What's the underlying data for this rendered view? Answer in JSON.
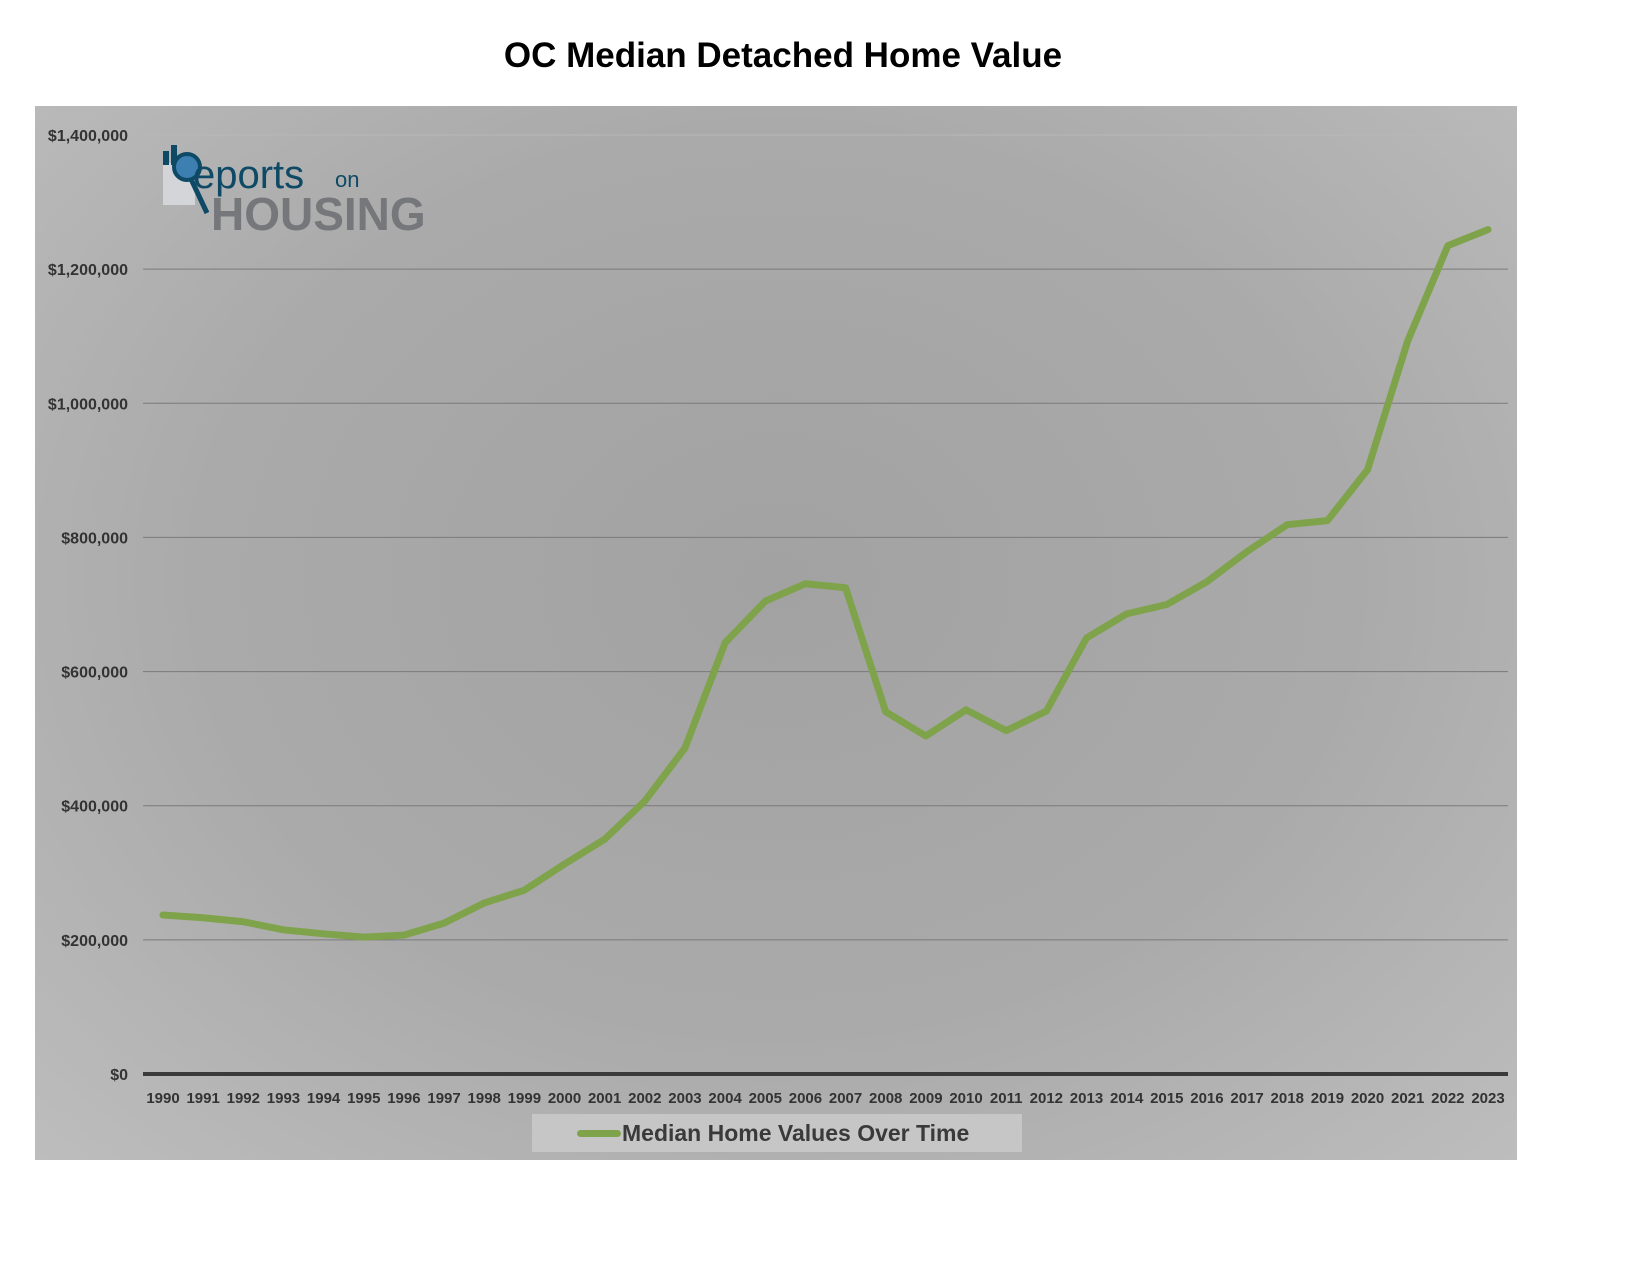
{
  "chart_data": {
    "type": "line",
    "title": "OC Median Detached Home Value",
    "xlabel": "",
    "ylabel": "",
    "ylim": [
      0,
      1400000
    ],
    "yticks": [
      0,
      200000,
      400000,
      600000,
      800000,
      1000000,
      1200000,
      1400000
    ],
    "ytick_labels": [
      "$0",
      "$200,000",
      "$400,000",
      "$600,000",
      "$800,000",
      "$1,000,000",
      "$1,200,000",
      "$1,400,000"
    ],
    "categories": [
      "1990",
      "1991",
      "1992",
      "1993",
      "1994",
      "1995",
      "1996",
      "1997",
      "1998",
      "1999",
      "2000",
      "2001",
      "2002",
      "2003",
      "2004",
      "2005",
      "2006",
      "2007",
      "2008",
      "2009",
      "2010",
      "2011",
      "2012",
      "2013",
      "2014",
      "2015",
      "2016",
      "2017",
      "2018",
      "2019",
      "2020",
      "2021",
      "2022",
      "2023"
    ],
    "series": [
      {
        "name": "Median Home Values Over Time",
        "color": "#7fa34a",
        "values": [
          237000,
          233000,
          227000,
          215000,
          209000,
          204000,
          207000,
          225000,
          255000,
          274000,
          313000,
          350000,
          407000,
          486000,
          643000,
          705000,
          731000,
          725000,
          540000,
          504000,
          543000,
          512000,
          541000,
          650000,
          686000,
          700000,
          734000,
          779000,
          819000,
          825000,
          901000,
          1093000,
          1235000,
          1259000
        ]
      }
    ],
    "grid": true,
    "legend": "bottom-center"
  },
  "logo": {
    "text_top": "Reports",
    "text_on": "on",
    "text_bottom": "HOUSING"
  }
}
